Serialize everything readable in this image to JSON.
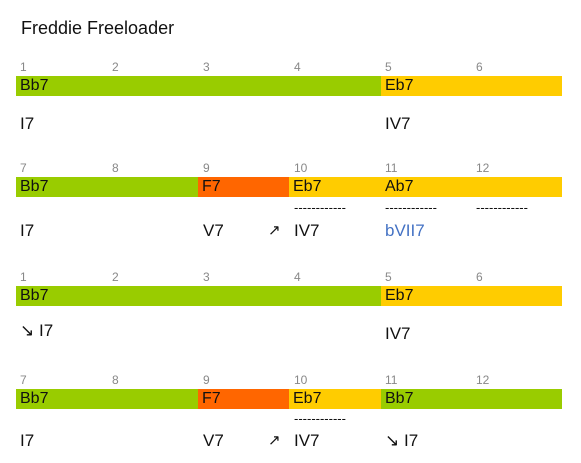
{
  "title": "Freddie Freeloader",
  "rows": [
    {
      "bars": [
        {
          "n": "1"
        },
        {
          "n": "2"
        },
        {
          "n": "3"
        },
        {
          "n": "4"
        },
        {
          "n": "5"
        },
        {
          "n": "6"
        }
      ],
      "chords": [
        "Bb7",
        "Eb7"
      ],
      "romans": [
        "I7",
        "IV7"
      ]
    },
    {
      "bars": [
        {
          "n": "7"
        },
        {
          "n": "8"
        },
        {
          "n": "9"
        },
        {
          "n": "10"
        },
        {
          "n": "11"
        },
        {
          "n": "12"
        }
      ],
      "chords": [
        "Bb7",
        "F7",
        "Eb7",
        "Ab7"
      ],
      "romans": [
        "I7",
        "V7",
        "IV7",
        "bVII7"
      ],
      "arrow": "↗",
      "dashes": [
        "------------",
        "------------",
        "------------"
      ]
    },
    {
      "bars": [
        {
          "n": "1"
        },
        {
          "n": "2"
        },
        {
          "n": "3"
        },
        {
          "n": "4"
        },
        {
          "n": "5"
        },
        {
          "n": "6"
        }
      ],
      "chords": [
        "Bb7",
        "Eb7"
      ],
      "romans": [
        "↘ I7",
        "IV7"
      ]
    },
    {
      "bars": [
        {
          "n": "7"
        },
        {
          "n": "8"
        },
        {
          "n": "9"
        },
        {
          "n": "10"
        },
        {
          "n": "11"
        },
        {
          "n": "12"
        }
      ],
      "chords": [
        "Bb7",
        "F7",
        "Eb7",
        "Bb7"
      ],
      "romans": [
        "I7",
        "V7",
        "IV7",
        "↘ I7"
      ],
      "arrow": "↗",
      "dashes": [
        "------------"
      ]
    }
  ]
}
